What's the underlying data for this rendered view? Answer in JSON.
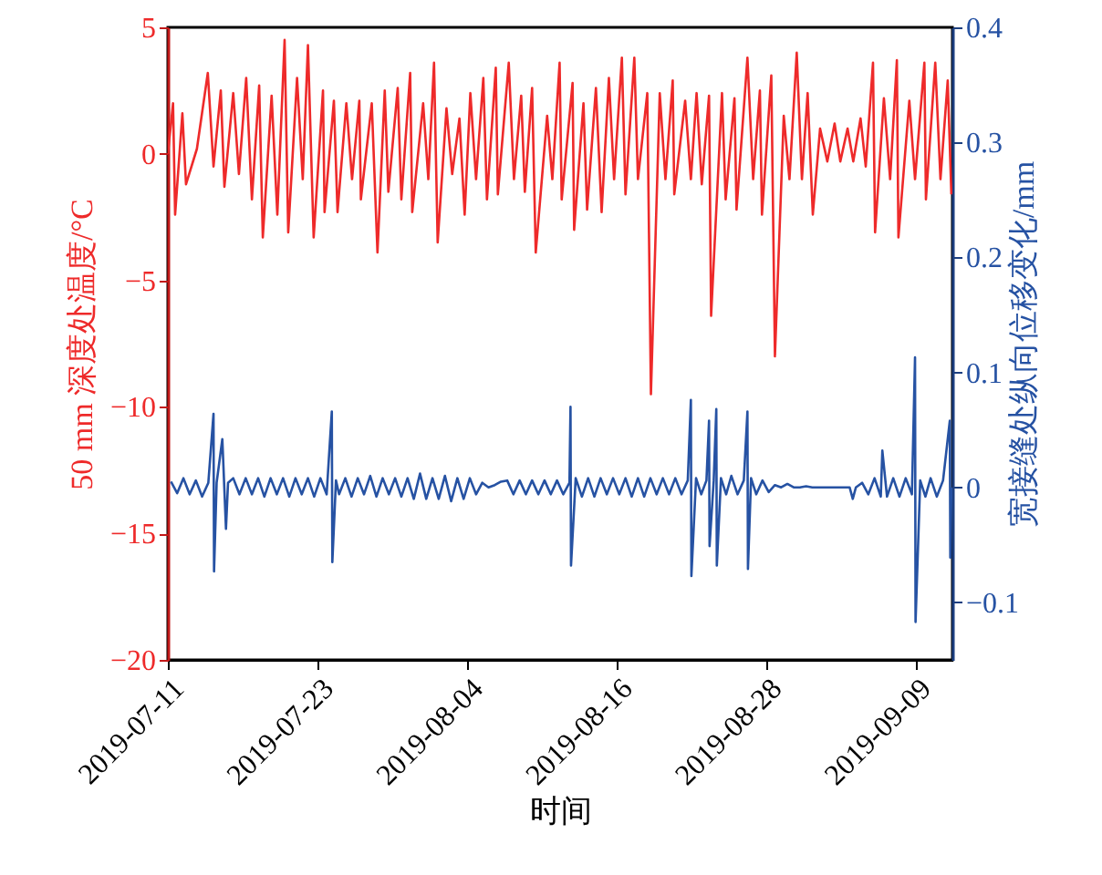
{
  "chart_data": {
    "type": "line",
    "xlabel": "时间",
    "ylabel": "50 mm 深度处温度/°C",
    "y2label": "宽接缝处纵向位移变化/mm",
    "xlim": [
      "2019-07-11",
      "2019-09-12"
    ],
    "xticks": [
      "2019-07-11",
      "2019-07-23",
      "2019-08-04",
      "2019-08-16",
      "2019-08-28",
      "2019-09-09"
    ],
    "ylim": [
      -20,
      5
    ],
    "yticks": [
      -20,
      -15,
      -10,
      -5,
      0,
      5
    ],
    "y2lim": [
      -0.15,
      0.4
    ],
    "y2ticks": [
      -0.1,
      0,
      0.1,
      0.2,
      0.3,
      0.4
    ],
    "series": [
      {
        "color": "#ee2a2a",
        "x": [
          "2019-07-11T00:00",
          "2019-07-11T10:00",
          "2019-07-11T14:00",
          "2019-07-12T04:00",
          "2019-07-12T11:00",
          "2019-07-13T08:00",
          "2019-07-14T05:00",
          "2019-07-14T16:00",
          "2019-07-15T06:00",
          "2019-07-15T13:00",
          "2019-07-16T06:00",
          "2019-07-16T17:00",
          "2019-07-17T07:00",
          "2019-07-17T18:00",
          "2019-07-18T08:00",
          "2019-07-18T15:00",
          "2019-07-19T08:00",
          "2019-07-19T19:00",
          "2019-07-20T09:00",
          "2019-07-20T16:00",
          "2019-07-21T09:00",
          "2019-07-21T20:00",
          "2019-07-22T06:00",
          "2019-07-22T17:00",
          "2019-07-23T11:00",
          "2019-07-23T14:00",
          "2019-07-24T08:00",
          "2019-07-24T15:00",
          "2019-07-25T08:00",
          "2019-07-25T19:00",
          "2019-07-26T09:00",
          "2019-07-26T12:00",
          "2019-07-27T09:00",
          "2019-07-27T20:00",
          "2019-07-28T10:00",
          "2019-07-28T17:00",
          "2019-07-29T11:00",
          "2019-07-29T18:00",
          "2019-07-30T11:00",
          "2019-07-30T15:00",
          "2019-07-31T12:00",
          "2019-07-31T22:00",
          "2019-08-01T09:00",
          "2019-08-01T16:00",
          "2019-08-02T09:00",
          "2019-08-02T20:00",
          "2019-08-03T10:00",
          "2019-08-03T20:00",
          "2019-08-04T07:00",
          "2019-08-04T18:00",
          "2019-08-05T08:00",
          "2019-08-05T15:00",
          "2019-08-06T08:00",
          "2019-08-06T12:00",
          "2019-08-07T09:00",
          "2019-08-07T19:00",
          "2019-08-08T09:00",
          "2019-08-08T16:00",
          "2019-08-09T06:00",
          "2019-08-09T13:00",
          "2019-08-10T11:00",
          "2019-08-10T21:00",
          "2019-08-11T11:00",
          "2019-08-11T15:00",
          "2019-08-12T12:00",
          "2019-08-12T15:00",
          "2019-08-13T09:00",
          "2019-08-13T16:00",
          "2019-08-14T09:00",
          "2019-08-14T20:00",
          "2019-08-15T10:00",
          "2019-08-15T20:00",
          "2019-08-16T11:00",
          "2019-08-16T18:00",
          "2019-08-17T11:00",
          "2019-08-17T18:00",
          "2019-08-18T12:00",
          "2019-08-18T19:00",
          "2019-08-19T12:00",
          "2019-08-19T23:00",
          "2019-08-20T13:00",
          "2019-08-20T16:00",
          "2019-08-21T13:00",
          "2019-08-22T00:00",
          "2019-08-22T11:00",
          "2019-08-22T21:00",
          "2019-08-23T11:00",
          "2019-08-23T15:00",
          "2019-08-24T12:00",
          "2019-08-24T19:00",
          "2019-08-25T12:00",
          "2019-08-25T16:00",
          "2019-08-26T13:00",
          "2019-08-27T00:00",
          "2019-08-27T13:00",
          "2019-08-27T17:00",
          "2019-08-28T11:00",
          "2019-08-28T18:00",
          "2019-08-29T11:00",
          "2019-08-29T22:00",
          "2019-08-30T12:00",
          "2019-08-30T22:00",
          "2019-08-31T09:00",
          "2019-08-31T19:00",
          "2019-09-01T09:00",
          "2019-09-01T23:00",
          "2019-09-02T13:00",
          "2019-09-03T00:00",
          "2019-09-03T14:00",
          "2019-09-04T01:00",
          "2019-09-04T15:00",
          "2019-09-05T01:00",
          "2019-09-05T15:00",
          "2019-09-05T19:00",
          "2019-09-06T12:00",
          "2019-09-07T00:00",
          "2019-09-07T13:00",
          "2019-09-07T16:00",
          "2019-09-08T13:00",
          "2019-09-09T00:00",
          "2019-09-09T18:00",
          "2019-09-09T21:00",
          "2019-09-10T15:00",
          "2019-09-11T01:00",
          "2019-09-11T15:00",
          "2019-09-11T22:00"
        ],
        "values": [
          0,
          2.0,
          -2.4,
          1.6,
          -1.2,
          0.2,
          3.2,
          -0.5,
          2.5,
          -1.3,
          2.4,
          -0.8,
          3.0,
          -1.8,
          2.7,
          -3.3,
          2.3,
          -2.4,
          4.5,
          -3.1,
          3.0,
          -1.0,
          4.3,
          -3.3,
          2.5,
          -2.3,
          2.1,
          -2.3,
          2.0,
          -1.0,
          2.1,
          -1.8,
          2.0,
          -3.9,
          2.5,
          -1.5,
          2.6,
          -1.8,
          3.2,
          -2.3,
          2.0,
          -1.0,
          3.6,
          -3.5,
          1.8,
          -0.8,
          1.4,
          -2.4,
          2.4,
          -1.0,
          3.0,
          -1.8,
          3.4,
          -1.6,
          3.6,
          -1.0,
          2.3,
          -1.5,
          2.6,
          -3.9,
          1.5,
          -1.0,
          3.6,
          -1.8,
          2.8,
          -3.0,
          2.0,
          -2.2,
          2.6,
          -2.3,
          3.0,
          -1.0,
          3.8,
          -1.6,
          3.8,
          -1.0,
          2.4,
          -9.5,
          2.4,
          -1.0,
          2.9,
          -1.6,
          2.1,
          -1.0,
          2.4,
          -1.2,
          2.3,
          -6.4,
          2.4,
          -1.8,
          2.2,
          -2.2,
          3.8,
          -1.0,
          2.5,
          -2.4,
          3.1,
          -8.0,
          1.5,
          -1.0,
          4.0,
          -1.0,
          2.4,
          -2.4,
          1.0,
          -0.3,
          1.2,
          -0.3,
          1.0,
          -0.3,
          1.4,
          -0.5,
          3.6,
          -3.1,
          2.2,
          -1.0,
          3.7,
          -3.3,
          2.1,
          -1.0,
          3.6,
          -1.8,
          3.6,
          -1.0,
          2.9,
          -1.6
        ]
      },
      {
        "color": "#2652a3",
        "axis": "y2",
        "x": [
          "2019-07-11T06:00",
          "2019-07-11T18:00",
          "2019-07-12T06:00",
          "2019-07-12T18:00",
          "2019-07-13T06:00",
          "2019-07-13T18:00",
          "2019-07-14T06:00",
          "2019-07-14T16:00",
          "2019-07-14T17:00",
          "2019-07-14T22:00",
          "2019-07-15T09:00",
          "2019-07-15T16:00",
          "2019-07-15T20:00",
          "2019-07-16T06:00",
          "2019-07-16T18:00",
          "2019-07-17T06:00",
          "2019-07-17T18:00",
          "2019-07-18T06:00",
          "2019-07-18T18:00",
          "2019-07-19T06:00",
          "2019-07-19T18:00",
          "2019-07-20T06:00",
          "2019-07-20T18:00",
          "2019-07-21T06:00",
          "2019-07-21T18:00",
          "2019-07-22T06:00",
          "2019-07-22T18:00",
          "2019-07-23T06:00",
          "2019-07-23T18:00",
          "2019-07-24T04:00",
          "2019-07-24T05:00",
          "2019-07-24T12:00",
          "2019-07-24T18:00",
          "2019-07-25T06:00",
          "2019-07-25T18:00",
          "2019-07-26T06:00",
          "2019-07-26T18:00",
          "2019-07-27T06:00",
          "2019-07-27T18:00",
          "2019-07-28T06:00",
          "2019-07-28T18:00",
          "2019-07-29T06:00",
          "2019-07-29T18:00",
          "2019-07-30T06:00",
          "2019-07-30T18:00",
          "2019-07-31T06:00",
          "2019-07-31T18:00",
          "2019-08-01T06:00",
          "2019-08-01T18:00",
          "2019-08-02T06:00",
          "2019-08-02T18:00",
          "2019-08-03T06:00",
          "2019-08-03T18:00",
          "2019-08-04T06:00",
          "2019-08-04T18:00",
          "2019-08-05T06:00",
          "2019-08-05T18:00",
          "2019-08-06T06:00",
          "2019-08-06T18:00",
          "2019-08-07T06:00",
          "2019-08-07T18:00",
          "2019-08-08T06:00",
          "2019-08-08T18:00",
          "2019-08-09T06:00",
          "2019-08-09T18:00",
          "2019-08-10T06:00",
          "2019-08-10T18:00",
          "2019-08-11T06:00",
          "2019-08-11T18:00",
          "2019-08-12T06:00",
          "2019-08-12T08:00",
          "2019-08-12T09:00",
          "2019-08-12T18:00",
          "2019-08-13T06:00",
          "2019-08-13T18:00",
          "2019-08-14T06:00",
          "2019-08-14T18:00",
          "2019-08-15T06:00",
          "2019-08-15T18:00",
          "2019-08-16T06:00",
          "2019-08-16T18:00",
          "2019-08-17T06:00",
          "2019-08-17T18:00",
          "2019-08-18T06:00",
          "2019-08-18T18:00",
          "2019-08-19T06:00",
          "2019-08-19T18:00",
          "2019-08-20T06:00",
          "2019-08-20T18:00",
          "2019-08-21T06:00",
          "2019-08-21T18:00",
          "2019-08-22T00:00",
          "2019-08-22T01:00",
          "2019-08-22T10:00",
          "2019-08-22T20:00",
          "2019-08-23T06:00",
          "2019-08-23T11:00",
          "2019-08-23T12:00",
          "2019-08-23T20:00",
          "2019-08-24T01:00",
          "2019-08-24T02:00",
          "2019-08-24T10:00",
          "2019-08-24T20:00",
          "2019-08-25T06:00",
          "2019-08-25T18:00",
          "2019-08-26T06:00",
          "2019-08-26T13:00",
          "2019-08-26T14:00",
          "2019-08-26T20:00",
          "2019-08-27T06:00",
          "2019-08-27T18:00",
          "2019-08-28T06:00",
          "2019-08-28T18:00",
          "2019-08-29T06:00",
          "2019-08-29T18:00",
          "2019-08-30T06:00",
          "2019-08-30T18:00",
          "2019-08-31T06:00",
          "2019-08-31T18:00",
          "2019-09-01T06:00",
          "2019-09-01T18:00",
          "2019-09-02T06:00",
          "2019-09-02T18:00",
          "2019-09-03T06:00",
          "2019-09-03T18:00",
          "2019-09-04T00:00",
          "2019-09-04T06:00",
          "2019-09-04T18:00",
          "2019-09-05T06:00",
          "2019-09-05T18:00",
          "2019-09-06T06:00",
          "2019-09-06T09:00",
          "2019-09-06T18:00",
          "2019-09-07T06:00",
          "2019-09-07T18:00",
          "2019-09-08T06:00",
          "2019-09-08T18:00",
          "2019-09-09T00:00",
          "2019-09-09T01:00",
          "2019-09-09T10:00",
          "2019-09-09T20:00",
          "2019-09-10T06:00",
          "2019-09-10T18:00",
          "2019-09-11T06:00",
          "2019-09-11T19:00",
          "2019-09-11T20:00",
          "2019-09-11T22:00"
        ],
        "values": [
          0.005,
          -0.005,
          0.008,
          -0.006,
          0.006,
          -0.008,
          0.004,
          0.064,
          -0.073,
          0.004,
          0.042,
          -0.036,
          0.004,
          0.008,
          -0.006,
          0.008,
          -0.006,
          0.008,
          -0.008,
          0.008,
          -0.006,
          0.008,
          -0.008,
          0.008,
          -0.006,
          0.008,
          -0.008,
          0.008,
          -0.006,
          0.066,
          -0.065,
          0.006,
          -0.006,
          0.008,
          -0.008,
          0.008,
          -0.006,
          0.01,
          -0.008,
          0.008,
          -0.006,
          0.008,
          -0.008,
          0.008,
          -0.01,
          0.012,
          -0.01,
          0.008,
          -0.01,
          0.01,
          -0.012,
          0.008,
          -0.01,
          0.008,
          -0.006,
          0.004,
          0,
          0.002,
          0.005,
          0.006,
          -0.006,
          0.006,
          -0.006,
          0.006,
          -0.006,
          0.006,
          -0.006,
          0.006,
          -0.006,
          0.004,
          0.07,
          -0.068,
          0.008,
          -0.008,
          0.008,
          -0.008,
          0.008,
          -0.006,
          0.008,
          -0.006,
          0.008,
          -0.008,
          0.008,
          -0.008,
          0.008,
          -0.006,
          0.008,
          -0.006,
          0.008,
          -0.006,
          0.006,
          0.076,
          -0.077,
          0.008,
          -0.006,
          0.006,
          0.058,
          -0.051,
          0.006,
          0.068,
          -0.068,
          0.008,
          -0.006,
          0.01,
          -0.006,
          0.006,
          0.066,
          -0.071,
          0.008,
          -0.006,
          0.006,
          -0.004,
          0.002,
          0,
          0.003,
          0,
          0,
          0.001,
          0,
          0,
          0,
          0,
          0,
          0,
          0,
          -0.01,
          0,
          0.004,
          -0.006,
          0.008,
          -0.008,
          0.032,
          -0.008,
          0.008,
          -0.008,
          0.008,
          -0.006,
          0.113,
          -0.117,
          0.006,
          -0.008,
          0.008,
          -0.008,
          0.006,
          0.058,
          -0.061,
          0
        ]
      }
    ]
  }
}
